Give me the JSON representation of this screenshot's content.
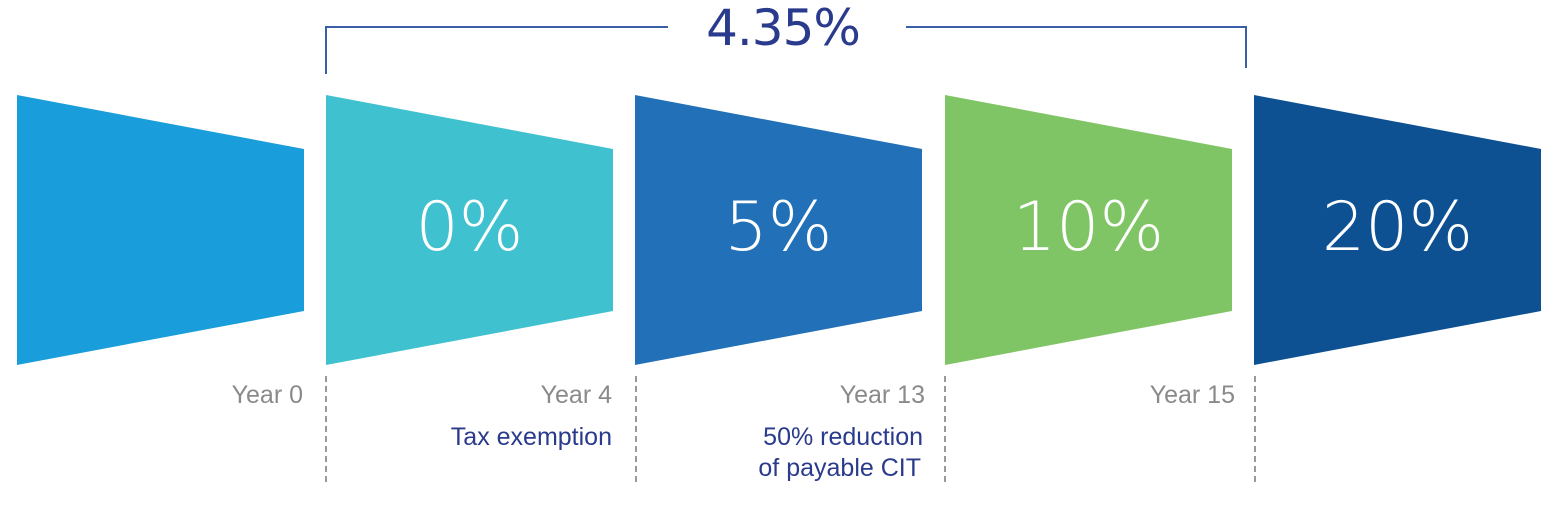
{
  "total_rate": "4.35%",
  "stages": [
    {
      "rate": "",
      "color": "#1a9edb"
    },
    {
      "rate": "0%",
      "color": "#40c1cf"
    },
    {
      "rate": "5%",
      "color": "#2170b8"
    },
    {
      "rate": "10%",
      "color": "#80c565"
    },
    {
      "rate": "20%",
      "color": "#0d5193"
    }
  ],
  "milestones": [
    {
      "year": "Year 0",
      "note": ""
    },
    {
      "year": "Year 4",
      "note": "Tax exemption"
    },
    {
      "year": "Year 13",
      "note_line1": "50% reduction",
      "note_line2": "of payable CIT"
    },
    {
      "year": "Year 15",
      "note": ""
    }
  ]
}
